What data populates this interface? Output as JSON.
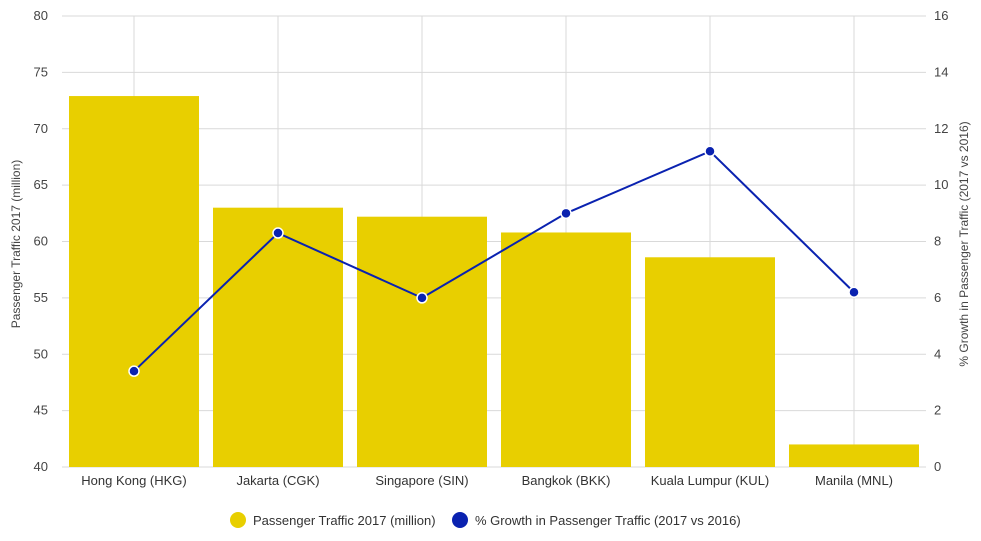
{
  "chart_data": {
    "type": "bar",
    "categories": [
      "Hong Kong (HKG)",
      "Jakarta (CGK)",
      "Singapore (SIN)",
      "Bangkok (BKK)",
      "Kuala Lumpur (KUL)",
      "Manila (MNL)"
    ],
    "series": [
      {
        "name": "Passenger Traffic 2017 (million)",
        "type": "bar",
        "axis": "left",
        "color": "#e8cf00",
        "values": [
          72.9,
          63.0,
          62.2,
          60.8,
          58.6,
          42.0
        ]
      },
      {
        "name": "% Growth in Passenger Traffic (2017 vs 2016)",
        "type": "line",
        "axis": "right",
        "color": "#0a22b0",
        "values": [
          3.4,
          8.3,
          6.0,
          9.0,
          11.2,
          6.2
        ]
      }
    ],
    "ylabel": "Passenger Traffic 2017 (million)",
    "y2label": "% Growth in Passenger Traffic (2017 vs 2016)",
    "ylim": [
      40,
      80
    ],
    "y2lim": [
      0,
      16
    ],
    "yticks": [
      "40",
      "45",
      "50",
      "55",
      "60",
      "65",
      "70",
      "75",
      "80"
    ],
    "y2ticks": [
      "0",
      "2",
      "4",
      "6",
      "8",
      "10",
      "12",
      "14",
      "16"
    ],
    "grid": true,
    "legend_position": "bottom"
  }
}
